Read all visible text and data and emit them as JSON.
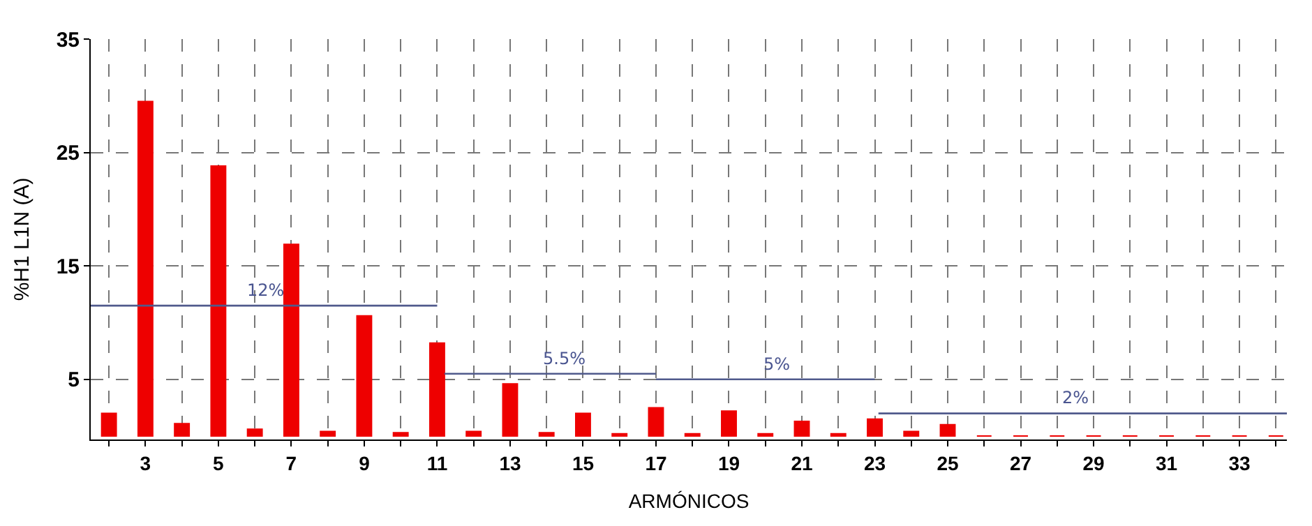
{
  "chart_data": {
    "type": "bar",
    "xlabel": "ARMÓNICOS",
    "ylabel": "%H1 L1N (A)",
    "x": [
      2,
      3,
      4,
      5,
      6,
      7,
      8,
      9,
      10,
      11,
      12,
      13,
      14,
      15,
      16,
      17,
      18,
      19,
      20,
      21,
      22,
      23,
      24,
      25,
      26,
      27,
      28,
      29,
      30,
      31,
      32,
      33,
      34
    ],
    "series": [
      {
        "color": "#ee0000",
        "values": [
          2.0,
          29.5,
          1.1,
          23.8,
          0.6,
          16.9,
          0.4,
          10.6,
          0.3,
          8.2,
          0.4,
          4.6,
          0.3,
          2.0,
          0.2,
          2.5,
          0.2,
          2.2,
          0.2,
          1.3,
          0.2,
          1.5,
          0.4,
          1.0,
          0,
          0,
          0,
          0,
          0,
          0,
          0,
          0,
          0
        ]
      },
      {
        "type": "line",
        "color": "#505a8c",
        "x": [
          1.5,
          11
        ],
        "values": [
          11.5,
          11.5
        ]
      },
      {
        "type": "line",
        "color": "#505a8c",
        "x": [
          11.2,
          17
        ],
        "values": [
          5.5,
          5.5
        ]
      },
      {
        "type": "line",
        "color": "#505a8c",
        "x": [
          17,
          23
        ],
        "values": [
          5.0,
          5.0
        ]
      },
      {
        "type": "line",
        "color": "#505a8c",
        "x": [
          23.1,
          34.3
        ],
        "values": [
          2.0,
          2.0
        ]
      }
    ],
    "annotations": [
      {
        "text": "12%",
        "x": 6.3,
        "y": 11.5
      },
      {
        "text": "5.5%",
        "x": 14.5,
        "y": 5.5
      },
      {
        "text": "5%",
        "x": 20.3,
        "y": 5.0
      },
      {
        "text": "2%",
        "x": 28.5,
        "y": 2.0
      }
    ],
    "xlim": [
      1.5,
      34.3
    ],
    "xticks": [
      {
        "value": 2,
        "label": null
      },
      3,
      {
        "value": 4,
        "label": null
      },
      5,
      {
        "value": 6,
        "label": null
      },
      7,
      {
        "value": 8,
        "label": null
      },
      9,
      {
        "value": 10,
        "label": null
      },
      11,
      {
        "value": 12,
        "label": null
      },
      13,
      {
        "value": 14,
        "label": null
      },
      15,
      {
        "value": 16,
        "label": null
      },
      17,
      {
        "value": 18,
        "label": null
      },
      19,
      {
        "value": 20,
        "label": null
      },
      21,
      {
        "value": 22,
        "label": null
      },
      23,
      {
        "value": 24,
        "label": null
      },
      25,
      {
        "value": 26,
        "label": null
      },
      27,
      {
        "value": 28,
        "label": null
      },
      29,
      {
        "value": 30,
        "label": null
      },
      31,
      {
        "value": 32,
        "label": null
      },
      33,
      {
        "value": 34,
        "label": null
      }
    ],
    "ylim": [
      -0.3,
      35
    ],
    "yticks": [
      5,
      15,
      25,
      35
    ],
    "grid": true,
    "line_style": "solid",
    "marker": "none"
  }
}
